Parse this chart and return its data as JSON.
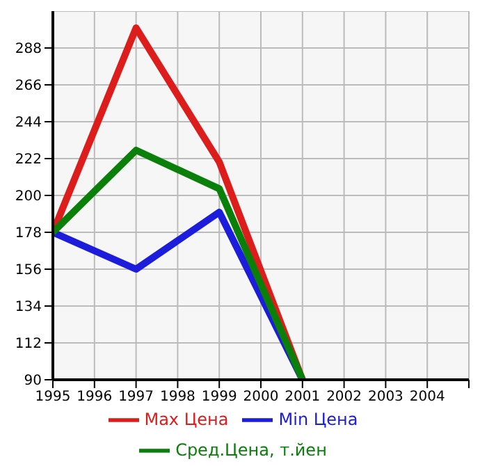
{
  "chart_data": {
    "type": "line",
    "x": [
      1995,
      1997,
      1999,
      2001
    ],
    "series": [
      {
        "name": "Max Цена",
        "color": "#dd1c1c",
        "values": [
          178,
          300,
          220,
          90
        ]
      },
      {
        "name": "Min Цена",
        "color": "#1c1cdd",
        "values": [
          178,
          156,
          190,
          90
        ]
      },
      {
        "name": "Сред.Цена, т.йен",
        "color": "#0a800a",
        "values": [
          178,
          227,
          204,
          90
        ]
      }
    ],
    "xlim": [
      1995,
      2005
    ],
    "xticks": [
      1995,
      1996,
      1997,
      1998,
      1999,
      2000,
      2001,
      2002,
      2003,
      2004,
      {
        "value": 2005,
        "label": null
      }
    ],
    "ylim": [
      90,
      310
    ],
    "yticks": [
      90,
      112,
      134,
      156,
      178,
      200,
      222,
      244,
      266,
      288
    ],
    "grid": true,
    "legend": "bottom",
    "marker": "none",
    "line_style": "solid"
  }
}
